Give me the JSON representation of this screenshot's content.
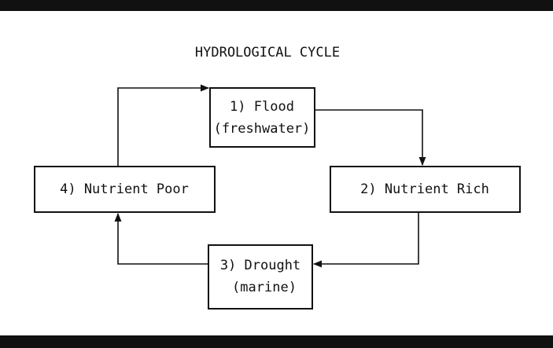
{
  "title": "HYDROLOGICAL CYCLE",
  "nodes": [
    {
      "lines": [
        "1) Flood",
        "(freshwater)"
      ]
    },
    {
      "lines": [
        "2) Nutrient Rich"
      ]
    },
    {
      "lines": [
        "3) Drought",
        "(marine)"
      ]
    },
    {
      "lines": [
        "4) Nutrient Poor"
      ]
    }
  ]
}
